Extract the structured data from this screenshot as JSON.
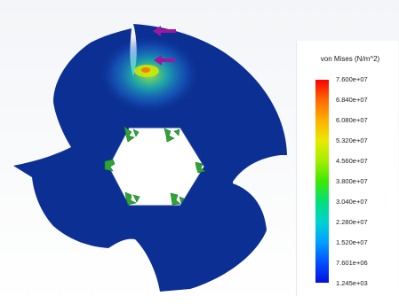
{
  "legend": {
    "title": "von Mises (N/m^2)",
    "labels": [
      "7.600e+07",
      "6.840e+07",
      "6.080e+07",
      "5.320e+07",
      "4.560e+07",
      "3.800e+07",
      "3.040e+07",
      "2.280e+07",
      "1.520e+07",
      "7.601e+06",
      "1.245e+03"
    ]
  },
  "colors": {
    "background": "#ffffff",
    "part_body": "#0b2f92",
    "fixture": "#2ea436",
    "load_arrow": "#a0169f"
  },
  "icons": {
    "load_arrows": "force-arrow-icon",
    "fixtures": "fixed-geometry-icon"
  }
}
